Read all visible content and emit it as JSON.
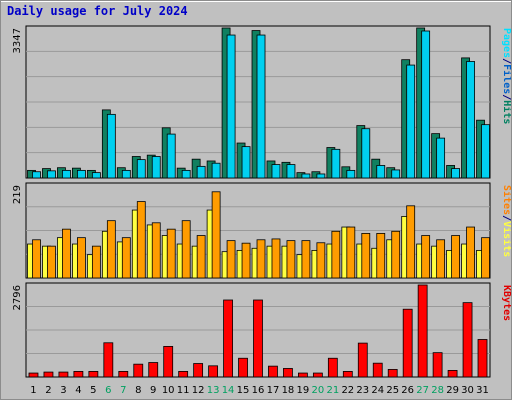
{
  "title": "Daily usage for July 2024",
  "chart_data": [
    {
      "type": "bar",
      "panel": "hits-files-pages",
      "ymax_label": "3347",
      "ylim": [
        0,
        3347
      ],
      "grid": true,
      "right_label": [
        {
          "text": "Pages",
          "color": "#00e0ff"
        },
        {
          "text": "/",
          "color": "#000080"
        },
        {
          "text": "Files",
          "color": "#0060c8"
        },
        {
          "text": "/",
          "color": "#000080"
        },
        {
          "text": "Hits",
          "color": "#008060"
        }
      ],
      "series": [
        {
          "name": "Hits",
          "color": "#108060",
          "values": [
            170,
            210,
            230,
            220,
            170,
            1520,
            230,
            480,
            510,
            1120,
            220,
            420,
            380,
            3347,
            780,
            3290,
            380,
            350,
            120,
            140,
            680,
            250,
            1170,
            420,
            230,
            2640,
            3347,
            990,
            280,
            2680,
            1290
          ]
        },
        {
          "name": "Files",
          "color": "#00d0f0",
          "values": [
            140,
            160,
            170,
            170,
            120,
            1420,
            170,
            410,
            480,
            980,
            170,
            260,
            330,
            3190,
            700,
            3190,
            300,
            300,
            90,
            90,
            640,
            170,
            1100,
            280,
            180,
            2520,
            3280,
            890,
            210,
            2600,
            1190
          ]
        }
      ]
    },
    {
      "type": "bar",
      "panel": "visits-sites",
      "ymax_label": "219",
      "ylim": [
        0,
        219
      ],
      "grid": true,
      "right_label": [
        {
          "text": "Sites",
          "color": "#ff8000"
        },
        {
          "text": "/",
          "color": "#000080"
        },
        {
          "text": "Visits",
          "color": "#ffff40"
        }
      ],
      "series": [
        {
          "name": "Visits",
          "color": "#ffff40",
          "values": [
            80,
            75,
            95,
            80,
            55,
            110,
            85,
            160,
            125,
            100,
            80,
            75,
            160,
            62,
            65,
            70,
            75,
            75,
            55,
            65,
            80,
            120,
            80,
            70,
            90,
            145,
            80,
            75,
            65,
            80,
            65
          ]
        },
        {
          "name": "Sites",
          "color": "#ff9c00",
          "values": [
            90,
            75,
            115,
            95,
            75,
            135,
            95,
            180,
            130,
            115,
            135,
            100,
            203,
            88,
            82,
            90,
            92,
            88,
            88,
            83,
            110,
            120,
            105,
            105,
            110,
            170,
            100,
            90,
            100,
            120,
            95
          ]
        }
      ]
    },
    {
      "type": "bar",
      "panel": "kbytes",
      "ymax_label": "2796",
      "ylim": [
        0,
        2796
      ],
      "grid": true,
      "right_label": [
        {
          "text": "KBytes",
          "color": "#e00000"
        }
      ],
      "series": [
        {
          "name": "KBytes",
          "color": "#ff0000",
          "values": [
            120,
            150,
            150,
            170,
            170,
            1040,
            170,
            390,
            440,
            930,
            170,
            410,
            340,
            2340,
            570,
            2340,
            330,
            260,
            120,
            120,
            570,
            170,
            1030,
            420,
            230,
            2060,
            2796,
            740,
            200,
            2260,
            1140
          ]
        }
      ]
    }
  ],
  "x_labels": [
    "1",
    "2",
    "3",
    "4",
    "5",
    "6",
    "7",
    "8",
    "9",
    "10",
    "11",
    "12",
    "13",
    "14",
    "15",
    "16",
    "17",
    "18",
    "19",
    "20",
    "21",
    "22",
    "23",
    "24",
    "25",
    "26",
    "27",
    "28",
    "29",
    "30",
    "31"
  ],
  "weekend_days": [
    6,
    7,
    13,
    14,
    20,
    21,
    27,
    28
  ],
  "weekend_color": "#00a060",
  "weekday_color": "#000000"
}
